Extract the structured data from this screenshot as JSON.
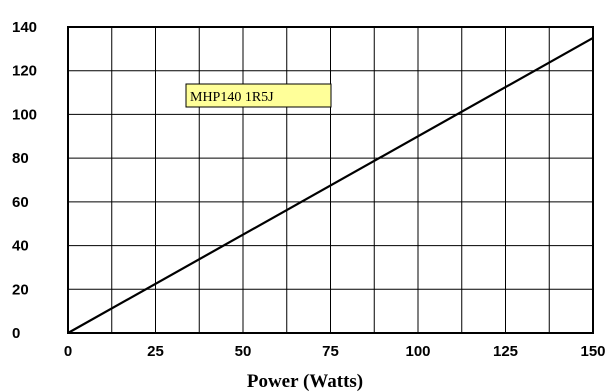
{
  "chart_data": {
    "type": "line",
    "title": "",
    "xlabel": "Power (Watts)",
    "ylabel": "",
    "xlim": [
      0,
      150
    ],
    "ylim": [
      0,
      140
    ],
    "x_ticks": [
      "0",
      "25",
      "50",
      "75",
      "100",
      "125",
      "150"
    ],
    "y_ticks": [
      "0",
      "20",
      "40",
      "60",
      "80",
      "100",
      "120",
      "140"
    ],
    "grid": true,
    "series": [
      {
        "x": [
          0,
          150
        ],
        "y": [
          0,
          135
        ],
        "color": "#000000"
      }
    ],
    "annotation": {
      "text": "MHP140 1R5J",
      "background": "#ffff99"
    }
  }
}
